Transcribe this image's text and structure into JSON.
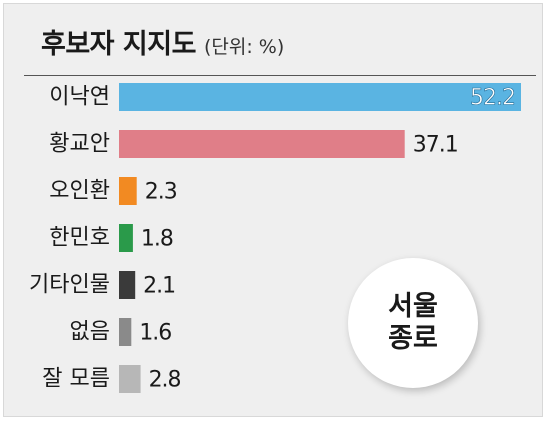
{
  "header": {
    "title": "후보자 지지도",
    "unit": "(단위: %)"
  },
  "badge": {
    "line1": "서울",
    "line2": "종로"
  },
  "chart_data": {
    "type": "bar",
    "orientation": "horizontal",
    "title": "후보자 지지도",
    "subtitle": "(단위: %)",
    "categories": [
      "이낙연",
      "황교안",
      "오인환",
      "한민호",
      "기타인물",
      "없음",
      "잘 모름"
    ],
    "values": [
      52.2,
      37.1,
      2.3,
      1.8,
      2.1,
      1.6,
      2.8
    ],
    "labels": [
      "52.2",
      "37.1",
      "2.3",
      "1.8",
      "2.1",
      "1.6",
      "2.8"
    ],
    "colors": [
      "#5ab4e2",
      "#e07e88",
      "#f28a22",
      "#2a9a4a",
      "#3a3a3a",
      "#8a8a8a",
      "#b7b7b7"
    ],
    "label_inside": [
      true,
      false,
      false,
      false,
      false,
      false,
      false
    ],
    "xlim": [
      0,
      52.2
    ],
    "grid": false,
    "legend": "none"
  }
}
